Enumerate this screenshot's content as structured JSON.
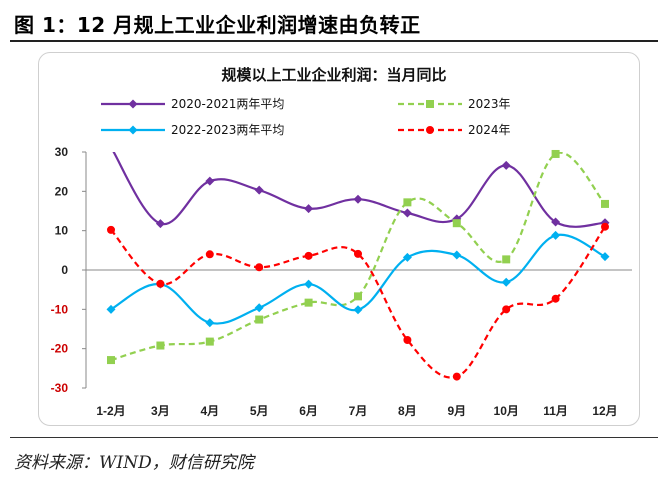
{
  "figure": {
    "title": "图 1：12 月规上工业企业利润增速由负转正",
    "source": "资料来源：WIND，财信研究院"
  },
  "chart_data": {
    "type": "line",
    "title": "规模以上工业企业利润：当月同比",
    "categories": [
      "1-2月",
      "3月",
      "4月",
      "5月",
      "6月",
      "7月",
      "8月",
      "9月",
      "10月",
      "11月",
      "12月"
    ],
    "ylim": [
      -30,
      30
    ],
    "yticks": [
      30,
      20,
      10,
      0,
      -10,
      -20,
      -30
    ],
    "grid": false,
    "legend_position": "top",
    "series": [
      {
        "name": "2020-2021两年平均",
        "color": "#7030a0",
        "dash": "solid",
        "marker": "diamond",
        "values": [
          31.2,
          11.8,
          22.6,
          20.3,
          15.6,
          18.0,
          14.5,
          13.0,
          26.6,
          12.2,
          12.0
        ]
      },
      {
        "name": "2023年",
        "color": "#92d050",
        "dash": "dashed",
        "marker": "square",
        "values": [
          -22.9,
          -19.2,
          -18.2,
          -12.6,
          -8.3,
          -6.7,
          17.2,
          11.9,
          2.7,
          29.5,
          16.8
        ]
      },
      {
        "name": "2022-2023两年平均",
        "color": "#00b0f0",
        "dash": "solid",
        "marker": "diamond",
        "values": [
          -10.0,
          -3.6,
          -13.4,
          -9.6,
          -3.6,
          -10.1,
          3.2,
          3.8,
          -3.1,
          8.8,
          3.4
        ]
      },
      {
        "name": "2024年",
        "color": "#ff0000",
        "dash": "dashed",
        "marker": "circle",
        "values": [
          10.2,
          -3.5,
          4.0,
          0.7,
          3.6,
          4.1,
          -17.8,
          -27.1,
          -10.0,
          -7.3,
          11.0
        ]
      }
    ]
  }
}
